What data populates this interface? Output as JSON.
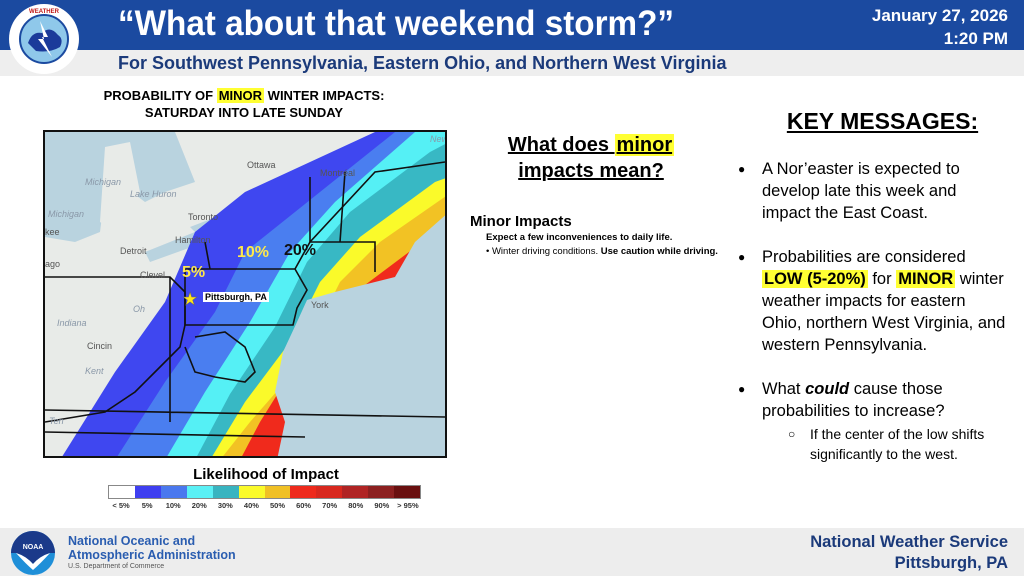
{
  "header": {
    "title": "“What about that weekend storm?”",
    "date": "January 27, 2026",
    "time": "1:20 PM",
    "subtitle": "For Southwest Pennsylvania, Eastern Ohio, and Northern West Virginia",
    "logo_text": "NATIONAL WEATHER SERVICE"
  },
  "map": {
    "title_pre": "PROBABILITY OF ",
    "title_hl": "MINOR",
    "title_post": " WINTER IMPACTS:",
    "title_line2": "SATURDAY INTO LATE SUNDAY",
    "labels": {
      "ottawa": "Ottawa",
      "montreal": "Montréal",
      "michigan": "Michigan",
      "lake_huron": "Lake Huron",
      "michigan2": "Michigan",
      "milwaukee": "kee",
      "toronto": "Toronto",
      "hamilton": "Hamilton",
      "detroit": "Detroit",
      "chicago": "ago",
      "cleveland": "Clevel",
      "ohio": "Oh",
      "indiana": "Indiana",
      "cincinnati": "Cincin",
      "kentucky": "Kent",
      "tennessee": "Ten",
      "newyork": "York",
      "new": "New"
    },
    "pct_5": "5%",
    "pct_10": "10%",
    "pct_20": "20%",
    "pittsburgh": "Pittsburgh, PA",
    "colors": {
      "land": "#e8ebe8",
      "water": "#b9d3df",
      "b5": "#3f47f0",
      "b10": "#4a7ef0",
      "b20": "#55f0f5",
      "b30": "#38b8c4",
      "b40": "#fafa2a",
      "b50": "#f2c224",
      "b60": "#f02a1c"
    }
  },
  "legend": {
    "title": "Likelihood of Impact",
    "items": [
      {
        "label": "< 5%",
        "color": "#ffffff"
      },
      {
        "label": "5%",
        "color": "#3f3ff0"
      },
      {
        "label": "10%",
        "color": "#4a78ee"
      },
      {
        "label": "20%",
        "color": "#5af0f5"
      },
      {
        "label": "30%",
        "color": "#38b4c0"
      },
      {
        "label": "40%",
        "color": "#fafa2a"
      },
      {
        "label": "50%",
        "color": "#f0c025"
      },
      {
        "label": "60%",
        "color": "#ee2a1c"
      },
      {
        "label": "70%",
        "color": "#d8281e"
      },
      {
        "label": "80%",
        "color": "#b02424"
      },
      {
        "label": "90%",
        "color": "#8c2020"
      },
      {
        "label": "> 95%",
        "color": "#6a1010"
      }
    ]
  },
  "minor": {
    "q1": "What does ",
    "q_hl": "minor",
    "q2": "impacts mean?",
    "heading": "Minor Impacts",
    "line1": "Expect a few inconveniences to daily life.",
    "bullet_a": "Winter driving conditions. ",
    "bullet_b": "Use caution while driving."
  },
  "key": {
    "title": "KEY MESSAGES:",
    "m1": "A Nor’easter is expected to develop late this week and impact the East Coast.",
    "m2_a": "Probabilities are considered ",
    "m2_hl1": "LOW (5-20%)",
    "m2_b": " for ",
    "m2_hl2": "MINOR",
    "m2_c": " winter weather impacts for eastern Ohio, northern West Virginia, and western Pennsylvania.",
    "m3_a": "What ",
    "m3_em": "could",
    "m3_b": " cause those probabilities to increase?",
    "m3_sub": "If the center of the low shifts significantly to the west."
  },
  "footer": {
    "org1": "National Oceanic and",
    "org2": "Atmospheric Administration",
    "dept": "U.S. Department of Commerce",
    "noaa": "NOAA",
    "office1": "National Weather Service",
    "office2": "Pittsburgh, PA"
  }
}
